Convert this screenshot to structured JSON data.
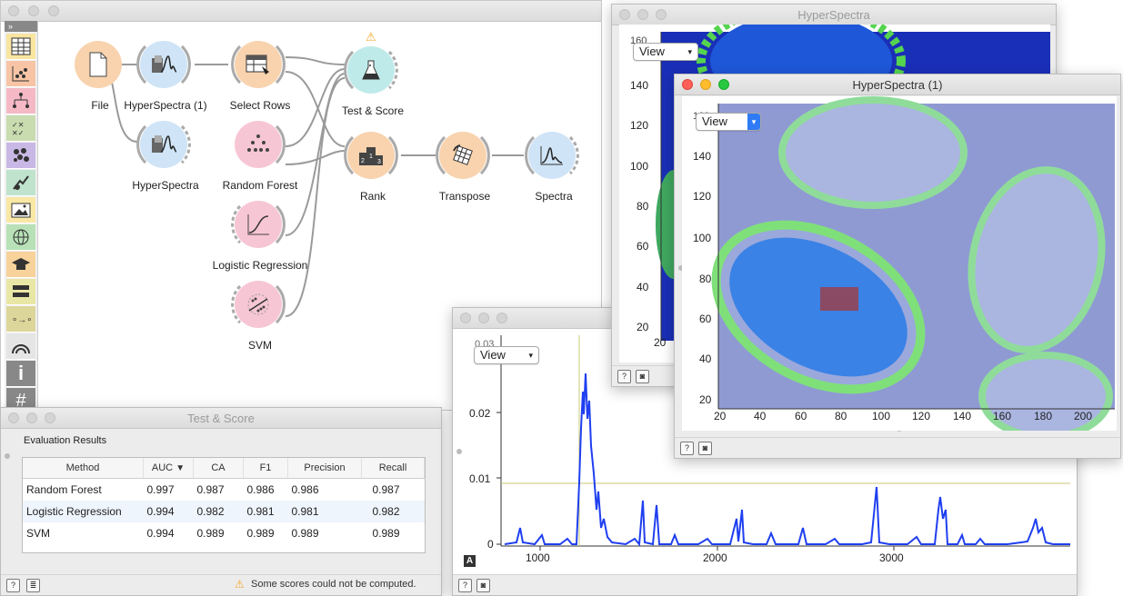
{
  "canvas": {
    "nodes": {
      "file": "File",
      "hyperspectra1": "HyperSpectra (1)",
      "hyperspectra": "HyperSpectra",
      "select_rows": "Select Rows",
      "random_forest": "Random Forest",
      "logistic_regression": "Logistic Regression",
      "svm": "SVM",
      "test_score": "Test & Score",
      "rank": "Rank",
      "transpose": "Transpose",
      "spectra": "Spectra"
    }
  },
  "test_score_window": {
    "title": "Test & Score",
    "section": "Evaluation Results",
    "sort_indicator": "▼",
    "columns": [
      "Method",
      "AUC",
      "CA",
      "F1",
      "Precision",
      "Recall"
    ],
    "rows": [
      [
        "Random Forest",
        "0.997",
        "0.987",
        "0.986",
        "0.986",
        "0.987"
      ],
      [
        "Logistic Regression",
        "0.994",
        "0.982",
        "0.981",
        "0.981",
        "0.982"
      ],
      [
        "SVM",
        "0.994",
        "0.989",
        "0.989",
        "0.989",
        "0.989"
      ]
    ],
    "status": "Some scores could not be computed."
  },
  "spectra_window": {
    "view_label": "View",
    "yticks": [
      "0.02",
      "0.01",
      "0"
    ],
    "xticks": [
      "1000",
      "2000",
      "3000"
    ],
    "top_tick_partial": "0.03",
    "badge": "A"
  },
  "hyperspectra_back": {
    "title": "HyperSpectra",
    "view_label": "View",
    "yticks": [
      "140",
      "120",
      "100",
      "80",
      "60",
      "40",
      "20"
    ],
    "top_tick_partial": "160",
    "xtick": "20"
  },
  "hyperspectra_front": {
    "title": "HyperSpectra (1)",
    "view_label": "View",
    "yticks": [
      "140",
      "120",
      "100",
      "80",
      "60",
      "40",
      "20"
    ],
    "top_tick_partial": "160",
    "xticks": [
      "20",
      "40",
      "60",
      "80",
      "100",
      "120",
      "140",
      "160",
      "180",
      "200"
    ]
  },
  "colors": {
    "orange_node": "#f8d3ae",
    "blue_node": "#cfe4f6",
    "pink_node": "#f7c6d5",
    "teal_node": "#bfeaea",
    "spectrum_line": "#1f3ff0",
    "warning": "#f5a623"
  }
}
